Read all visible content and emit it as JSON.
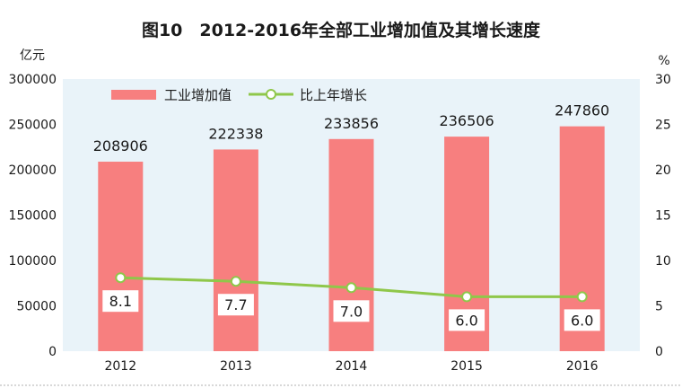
{
  "chart_data": {
    "type": "bar",
    "title": "图10　2012-2016年全部工业增加值及其增长速度",
    "categories": [
      "2012",
      "2013",
      "2014",
      "2015",
      "2016"
    ],
    "series": [
      {
        "name": "工业增加值",
        "type": "bar",
        "axis": "left",
        "values": [
          208906,
          222338,
          233856,
          236506,
          247860
        ],
        "labels": [
          "208906",
          "222338",
          "233856",
          "236506",
          "247860"
        ]
      },
      {
        "name": "比上年增长",
        "type": "line",
        "axis": "right",
        "values": [
          8.1,
          7.7,
          7.0,
          6.0,
          6.0
        ],
        "labels": [
          "8.1",
          "7.7",
          "7.0",
          "6.0",
          "6.0"
        ]
      }
    ],
    "y_left": {
      "unit": "亿元",
      "ylim": [
        0,
        300000
      ],
      "ticks": [
        "0",
        "50000",
        "100000",
        "150000",
        "200000",
        "250000",
        "300000"
      ]
    },
    "y_right": {
      "unit": "%",
      "ylim": [
        0,
        30
      ],
      "ticks": [
        "0",
        "5",
        "10",
        "15",
        "20",
        "25",
        "30"
      ]
    },
    "legend": "top-left",
    "grid": false
  },
  "colors": {
    "bar": "#f77f7f",
    "line": "#8fc74a",
    "plot_bg": "#e9f3f9",
    "panel_bg": "#ffffff"
  }
}
